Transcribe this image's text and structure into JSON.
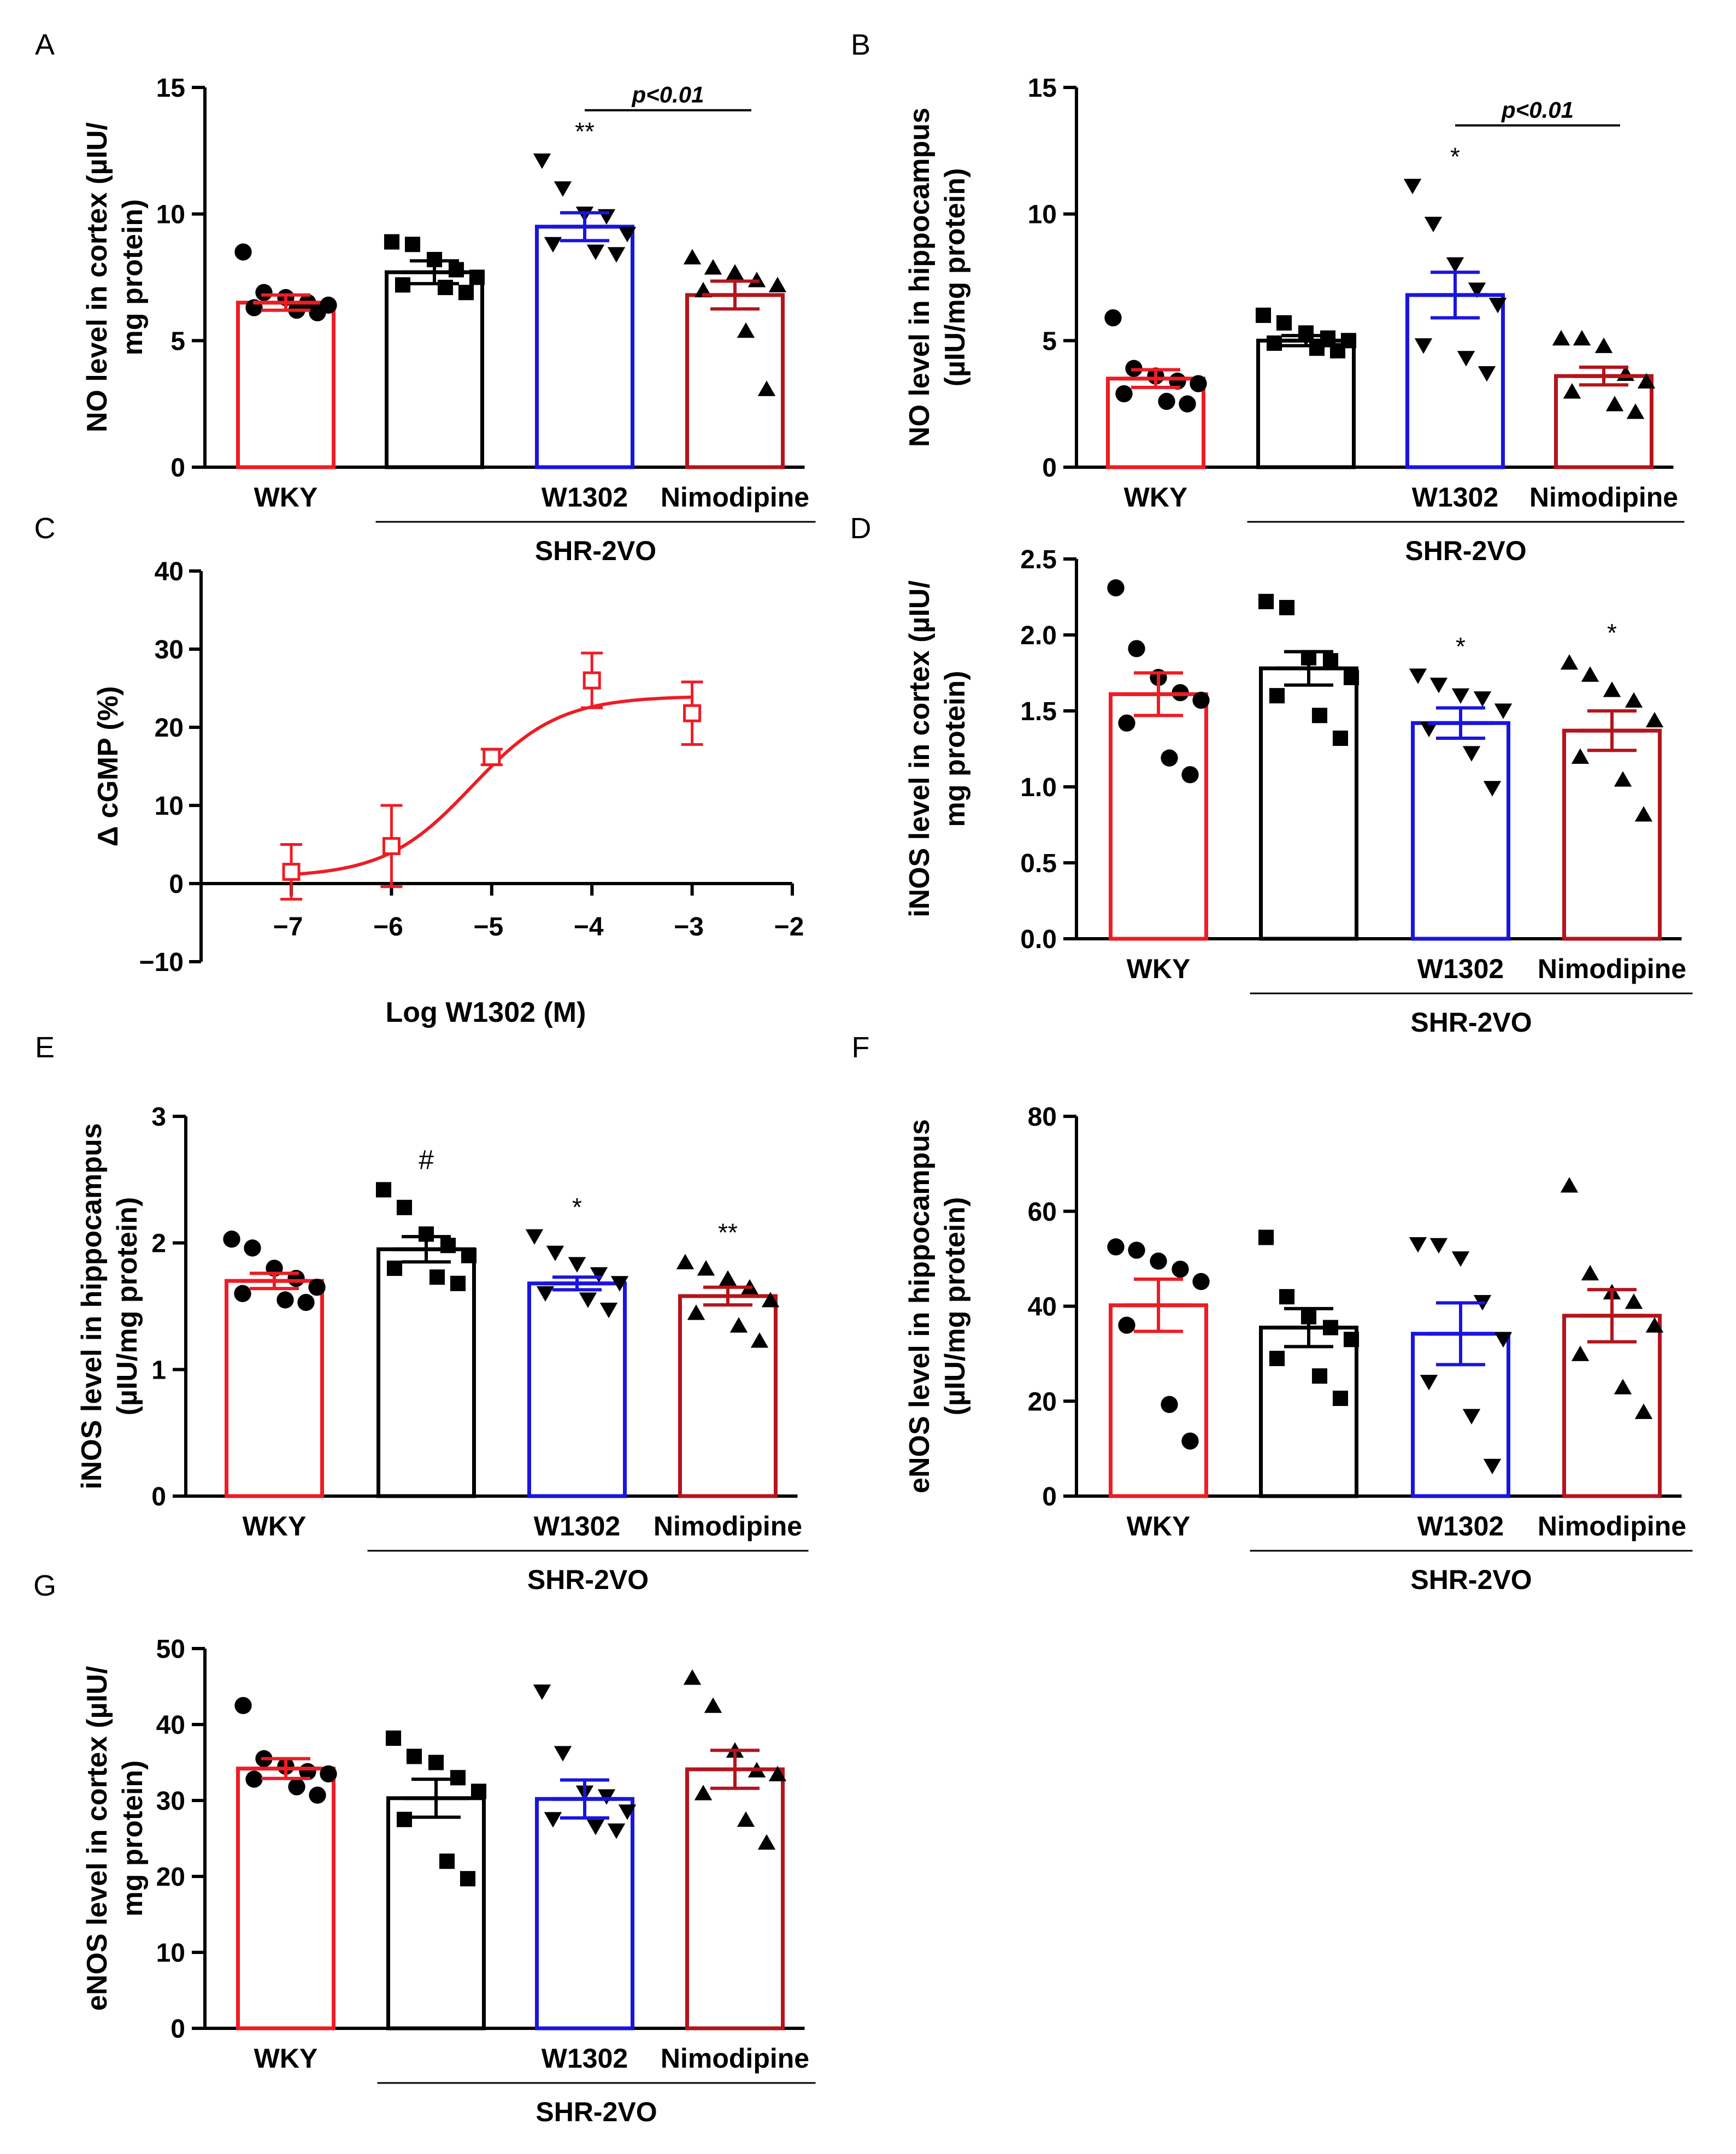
{
  "colors": {
    "WKY": "#ee1c24",
    "SHR-2VO": "#000000",
    "W1302": "#1a14e0",
    "Nimodipine": "#b4141c",
    "curve": "#ee1c24"
  },
  "group_label": "SHR-2VO",
  "chart_data": [
    {
      "panel": "A",
      "type": "bar",
      "ylabel": [
        "NO level in cortex (µIU/",
        "mg protein)"
      ],
      "ylim": [
        0,
        15
      ],
      "yticks": [
        0,
        5,
        10,
        15
      ],
      "categories": [
        "WKY",
        "SHR-2VO",
        "W1302",
        "Nimodipine"
      ],
      "category_labels": [
        "WKY",
        "",
        "W1302",
        "Nimodipine"
      ],
      "group_label": "SHR-2VO",
      "means": [
        6.5,
        7.7,
        9.5,
        6.8
      ],
      "sem": [
        0.3,
        0.45,
        0.55,
        0.55
      ],
      "points": [
        [
          8.5,
          6.9,
          6.7,
          6.5,
          6.4,
          6.3,
          6.2,
          6.1
        ],
        [
          8.9,
          8.8,
          8.2,
          7.8,
          7.5,
          7.2,
          7.1,
          6.9
        ],
        [
          12.1,
          11.0,
          10.0,
          9.9,
          9.2,
          8.8,
          8.5,
          8.4
        ],
        [
          8.3,
          7.9,
          7.7,
          7.4,
          7.2,
          7.0,
          5.4,
          3.1
        ]
      ],
      "markers": [
        "circle",
        "square",
        "tri-down",
        "tri-up"
      ],
      "annotations": [
        "",
        "",
        "**",
        ""
      ],
      "comparison": {
        "from": 2,
        "to": 3,
        "label": "p<0.01",
        "y": 14.1
      }
    },
    {
      "panel": "B",
      "type": "bar",
      "ylabel": [
        "NO level in hippocampus",
        "(µIU/mg protein)"
      ],
      "ylim": [
        0,
        15
      ],
      "yticks": [
        0,
        5,
        10,
        15
      ],
      "categories": [
        "WKY",
        "SHR-2VO",
        "W1302",
        "Nimodipine"
      ],
      "category_labels": [
        "WKY",
        "",
        "W1302",
        "Nimodipine"
      ],
      "group_label": "SHR-2VO",
      "means": [
        3.5,
        5.0,
        6.8,
        3.6
      ],
      "sem": [
        0.35,
        0.2,
        0.9,
        0.35
      ],
      "points": [
        [
          5.9,
          3.9,
          3.6,
          3.4,
          3.3,
          2.9,
          2.6,
          2.5
        ],
        [
          6.0,
          5.7,
          5.3,
          5.1,
          5.0,
          4.9,
          4.7,
          4.6
        ],
        [
          11.1,
          9.6,
          8.0,
          7.0,
          6.4,
          4.8,
          4.3,
          3.7
        ],
        [
          5.1,
          5.1,
          4.8,
          3.7,
          3.4,
          3.0,
          2.5,
          2.2
        ]
      ],
      "markers": [
        "circle",
        "square",
        "tri-down",
        "tri-up"
      ],
      "annotations": [
        "",
        "",
        "*",
        ""
      ],
      "comparison": {
        "from": 2,
        "to": 3,
        "label": "p<0.01",
        "y": 13.5
      }
    },
    {
      "panel": "C",
      "type": "line",
      "xlabel": "Log W1302 (M)",
      "ylabel": "Δ cGMP (%)",
      "xlim": [
        -7.9,
        -2
      ],
      "ylim": [
        -10,
        40
      ],
      "xticks": [
        -7,
        -6,
        -5,
        -4,
        -3,
        -2
      ],
      "yticks": [
        -10,
        0,
        10,
        20,
        30,
        40
      ],
      "series": [
        {
          "name": "W1302",
          "x": [
            -7,
            -6,
            -5,
            -4,
            -3
          ],
          "y": [
            1.5,
            4.8,
            16.2,
            26.0,
            21.8
          ],
          "err": [
            3.5,
            5.2,
            1.0,
            3.5,
            4.0
          ]
        }
      ],
      "fit": {
        "bottom": 0.8,
        "top": 24.0,
        "logEC50": -5.2,
        "hill": 1.0,
        "x_from": -7,
        "x_to": -3
      }
    },
    {
      "panel": "D",
      "type": "bar",
      "ylabel": [
        "iNOS level in cortex (µIU/",
        "mg protein)"
      ],
      "ylim": [
        0,
        2.5
      ],
      "yticks": [
        0.0,
        0.5,
        1.0,
        1.5,
        2.0,
        2.5
      ],
      "ytick_labels": [
        "0.0",
        "0.5",
        "1.0",
        "1.5",
        "2.0",
        "2.5"
      ],
      "categories": [
        "WKY",
        "SHR-2VO",
        "W1302",
        "Nimodipine"
      ],
      "category_labels": [
        "WKY",
        "",
        "W1302",
        "Nimodipine"
      ],
      "group_label": "SHR-2VO",
      "means": [
        1.61,
        1.78,
        1.42,
        1.37
      ],
      "sem": [
        0.14,
        0.11,
        0.1,
        0.13
      ],
      "points": [
        [
          2.31,
          1.91,
          1.72,
          1.62,
          1.57,
          1.42,
          1.19,
          1.08
        ],
        [
          2.22,
          2.18,
          1.85,
          1.83,
          1.72,
          1.6,
          1.47,
          1.32
        ],
        [
          1.73,
          1.67,
          1.6,
          1.58,
          1.5,
          1.38,
          1.22,
          0.99
        ],
        [
          1.82,
          1.74,
          1.64,
          1.57,
          1.44,
          1.2,
          1.05,
          0.82
        ]
      ],
      "markers": [
        "circle",
        "square",
        "tri-down",
        "tri-up"
      ],
      "annotations": [
        "",
        "",
        "*",
        "*"
      ]
    },
    {
      "panel": "E",
      "type": "bar",
      "ylabel": [
        "iNOS level in hippocampus",
        "(µIU/mg protein)"
      ],
      "ylim": [
        0,
        3
      ],
      "yticks": [
        0,
        1,
        2,
        3
      ],
      "categories": [
        "WKY",
        "SHR-2VO",
        "W1302",
        "Nimodipine"
      ],
      "category_labels": [
        "WKY",
        "",
        "W1302",
        "Nimodipine"
      ],
      "group_label": "SHR-2VO",
      "means": [
        1.7,
        1.95,
        1.68,
        1.58
      ],
      "sem": [
        0.06,
        0.1,
        0.05,
        0.07
      ],
      "points": [
        [
          2.03,
          1.96,
          1.8,
          1.72,
          1.65,
          1.6,
          1.55,
          1.53
        ],
        [
          2.42,
          2.28,
          2.07,
          1.98,
          1.9,
          1.8,
          1.73,
          1.68
        ],
        [
          2.05,
          1.92,
          1.83,
          1.75,
          1.68,
          1.6,
          1.55,
          1.47
        ],
        [
          1.85,
          1.8,
          1.72,
          1.65,
          1.55,
          1.45,
          1.35,
          1.23
        ]
      ],
      "markers": [
        "circle",
        "square",
        "tri-down",
        "tri-up"
      ],
      "annotations": [
        "",
        "#",
        "*",
        "**"
      ]
    },
    {
      "panel": "F",
      "type": "bar",
      "ylabel": [
        "eNOS level in hippocampus",
        "(µIU/mg protein)"
      ],
      "ylim": [
        0,
        80
      ],
      "yticks": [
        0,
        20,
        40,
        60,
        80
      ],
      "categories": [
        "WKY",
        "SHR-2VO",
        "W1302",
        "Nimodipine"
      ],
      "category_labels": [
        "WKY",
        "",
        "W1302",
        "Nimodipine"
      ],
      "group_label": "SHR-2VO",
      "means": [
        40.2,
        35.5,
        34.2,
        38.0
      ],
      "sem": [
        5.5,
        4.0,
        6.5,
        5.5
      ],
      "points": [
        [
          52.5,
          51.8,
          49.5,
          47.8,
          45.2,
          36.0,
          19.3,
          11.6
        ],
        [
          54.5,
          42.0,
          37.8,
          35.5,
          33.0,
          29.0,
          25.3,
          20.6
        ],
        [
          53.0,
          52.8,
          50.0,
          40.8,
          33.0,
          24.0,
          16.8,
          6.3
        ],
        [
          65.5,
          47.0,
          43.0,
          41.0,
          36.0,
          30.0,
          23.0,
          17.8
        ]
      ],
      "markers": [
        "circle",
        "square",
        "tri-down",
        "tri-up"
      ],
      "annotations": [
        "",
        "",
        "",
        ""
      ]
    },
    {
      "panel": "G",
      "type": "bar",
      "ylabel": [
        "eNOS level in cortex (µIU/",
        "mg protein)"
      ],
      "ylim": [
        0,
        50
      ],
      "yticks": [
        0,
        10,
        20,
        30,
        40,
        50
      ],
      "categories": [
        "WKY",
        "SHR-2VO",
        "W1302",
        "Nimodipine"
      ],
      "category_labels": [
        "WKY",
        "",
        "W1302",
        "Nimodipine"
      ],
      "group_label": "SHR-2VO",
      "means": [
        34.2,
        30.3,
        30.2,
        34.1
      ],
      "sem": [
        1.3,
        2.5,
        2.5,
        2.5
      ],
      "points": [
        [
          42.5,
          35.5,
          34.5,
          33.8,
          33.5,
          32.8,
          31.8,
          30.7
        ],
        [
          38.2,
          35.8,
          35.0,
          33.0,
          31.2,
          27.5,
          22.0,
          19.7
        ],
        [
          44.3,
          36.2,
          31.0,
          30.5,
          28.5,
          27.5,
          26.5,
          26.0
        ],
        [
          46.2,
          42.5,
          36.6,
          34.0,
          33.5,
          31.0,
          27.5,
          24.5
        ]
      ],
      "markers": [
        "circle",
        "square",
        "tri-down",
        "tri-up"
      ],
      "annotations": [
        "",
        "",
        "",
        ""
      ]
    }
  ]
}
